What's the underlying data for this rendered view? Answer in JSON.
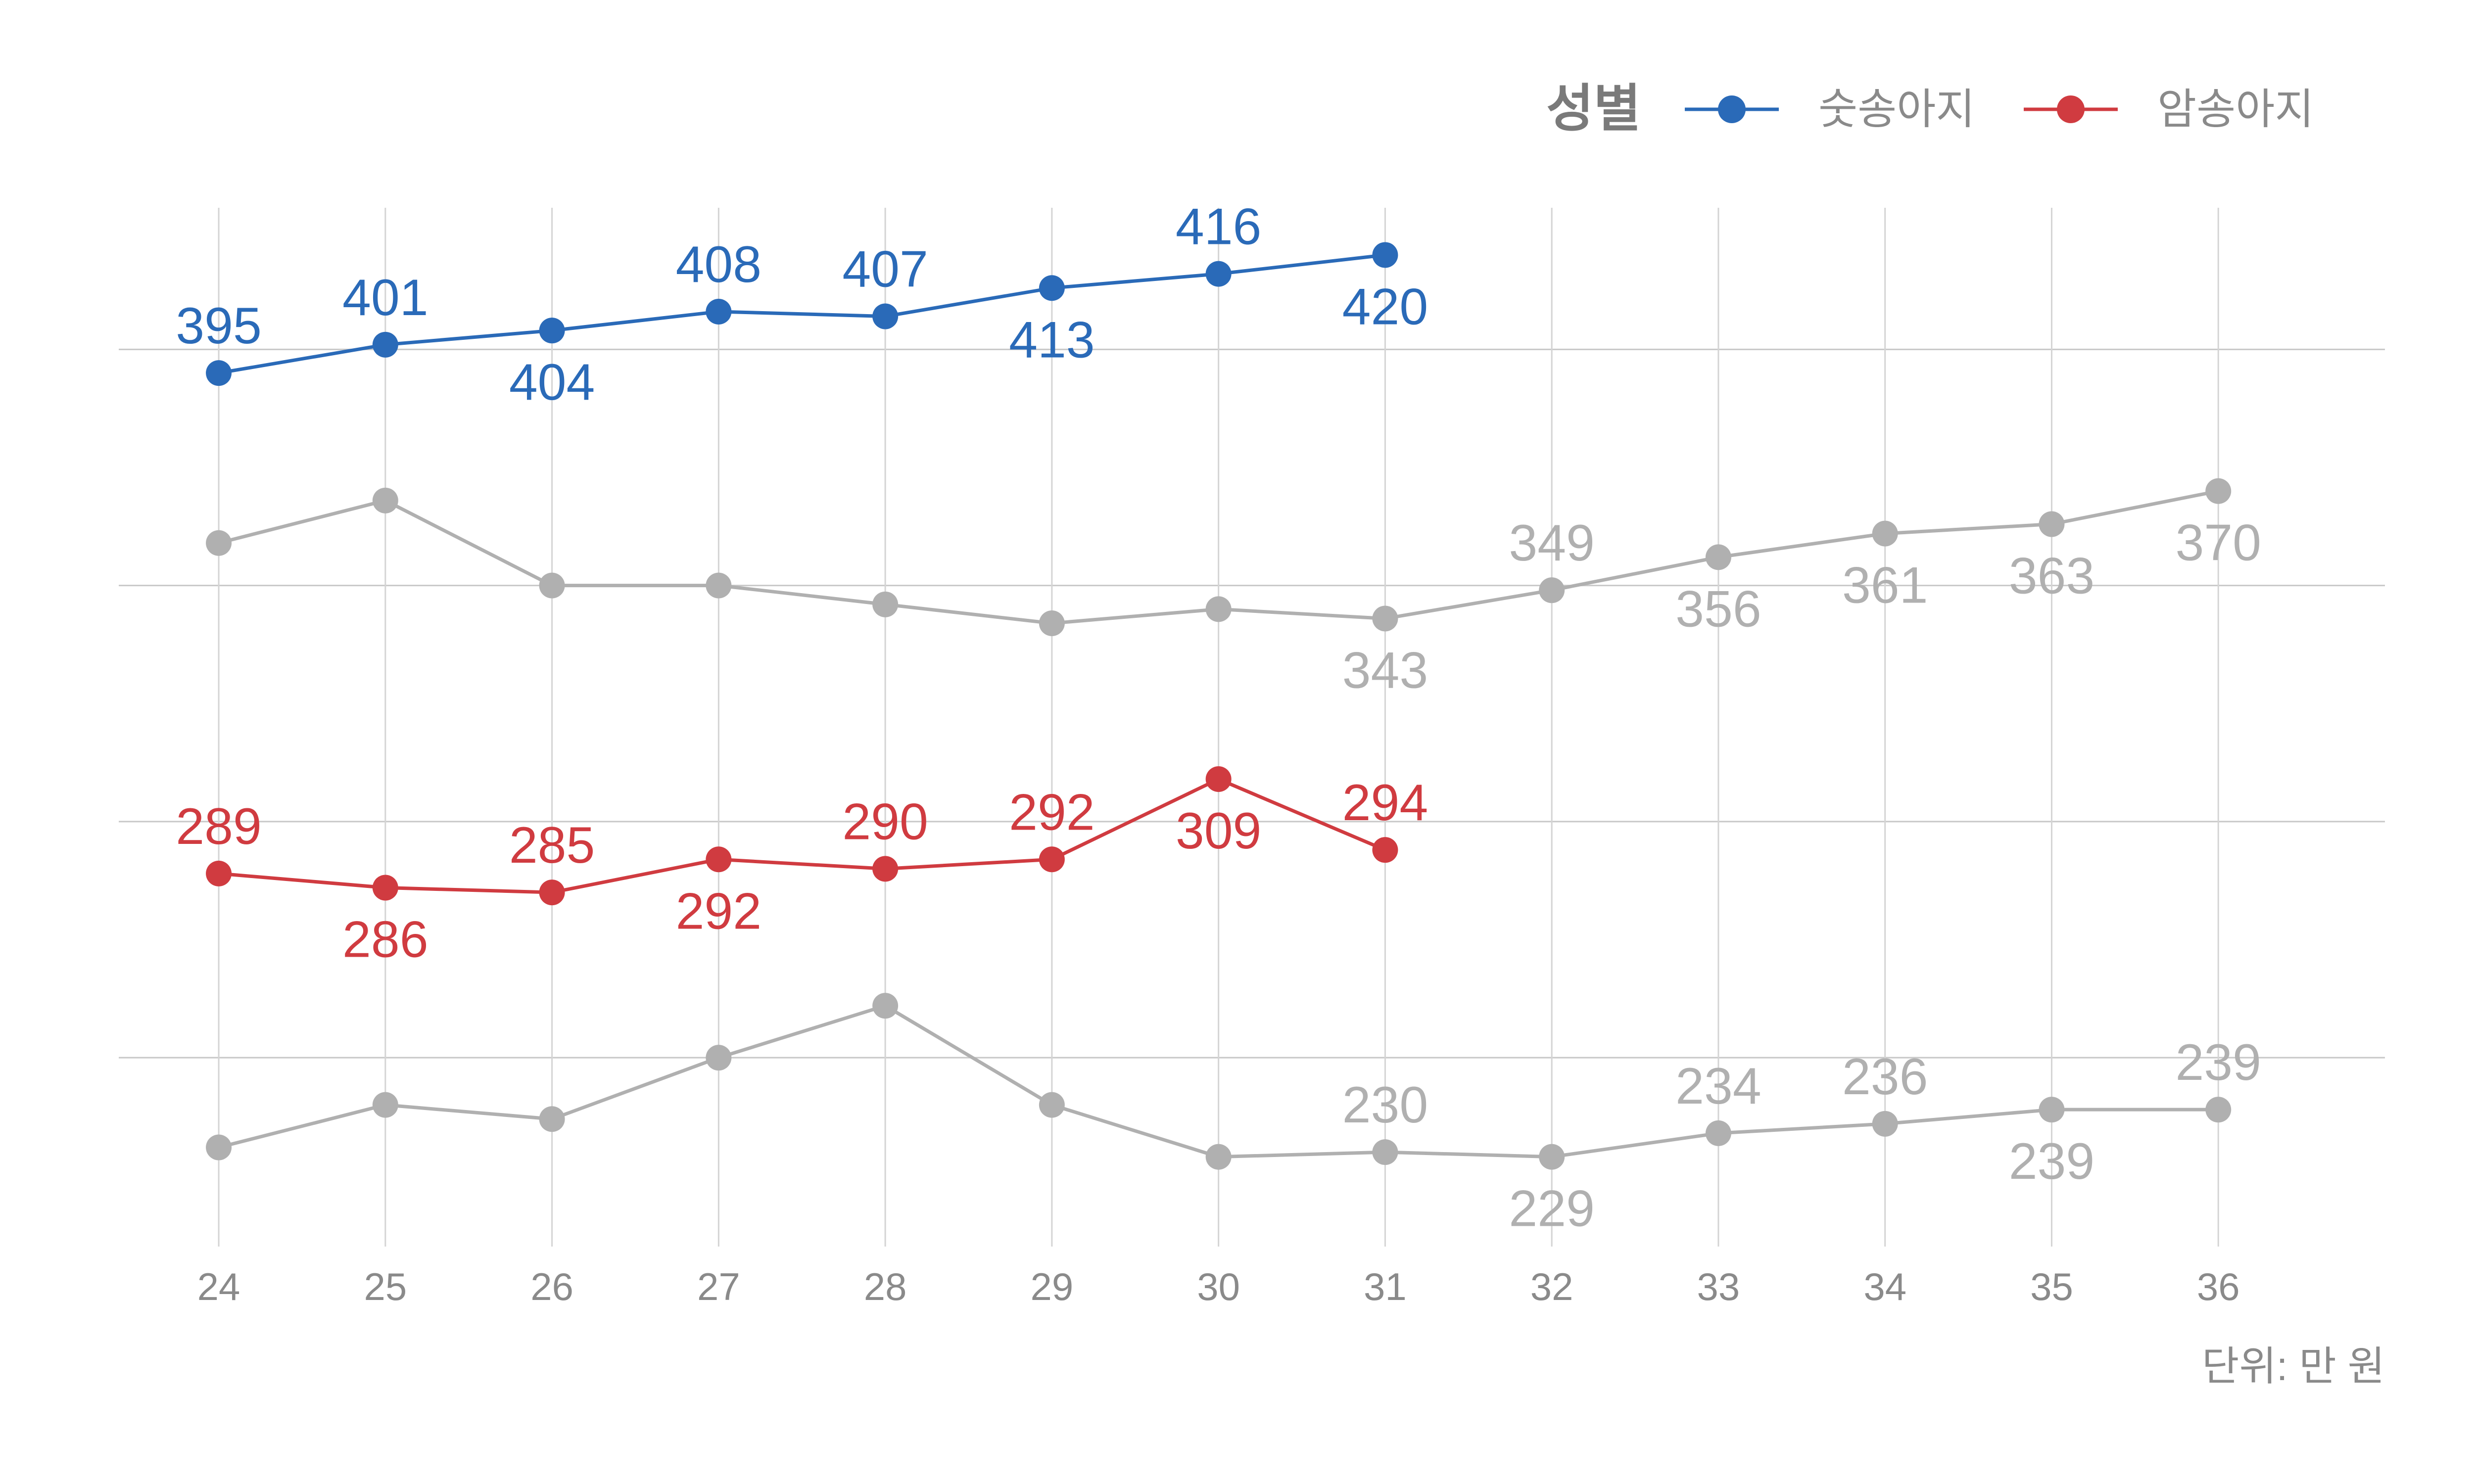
{
  "chart_data": {
    "type": "line",
    "x": [
      24,
      25,
      26,
      27,
      28,
      29,
      30,
      31,
      32,
      33,
      34,
      35,
      36
    ],
    "xlim": [
      23.4,
      37.0
    ],
    "ylim": [
      210,
      430
    ],
    "grid": true,
    "legend": {
      "title": "성별",
      "placement": "top-right",
      "entries": [
        {
          "label": "숫송아지",
          "color": "#2a6ab8"
        },
        {
          "label": "암송아지",
          "color": "#d03b40"
        }
      ]
    },
    "caption": "단위: 만 원",
    "series": [
      {
        "name": "숫송아지",
        "color": "#2a6ab8",
        "values": [
          395,
          401,
          404,
          408,
          407,
          413,
          416,
          420,
          null,
          null,
          null,
          null,
          null
        ],
        "labels": [
          395,
          401,
          404,
          408,
          407,
          413,
          416,
          420,
          null,
          null,
          null,
          null,
          null
        ],
        "label_pos": [
          "above",
          "above",
          "below",
          "above",
          "above",
          "below",
          "above",
          "below",
          null,
          null,
          null,
          null,
          null
        ]
      },
      {
        "name": "",
        "color": "#b0b0b0",
        "values": [
          359,
          368,
          350,
          350,
          346,
          342,
          345,
          343,
          349,
          356,
          361,
          363,
          370
        ],
        "labels": [
          null,
          null,
          null,
          null,
          null,
          null,
          null,
          343,
          349,
          356,
          361,
          363,
          370
        ],
        "label_pos": [
          null,
          null,
          null,
          null,
          null,
          null,
          null,
          "below",
          "above",
          "below",
          "below",
          "below",
          "below"
        ]
      },
      {
        "name": "암송아지",
        "color": "#d03b40",
        "values": [
          289,
          286,
          285,
          292,
          290,
          292,
          309,
          294,
          null,
          null,
          null,
          null,
          null
        ],
        "labels": [
          289,
          286,
          285,
          292,
          290,
          292,
          309,
          294,
          null,
          null,
          null,
          null,
          null
        ],
        "label_pos": [
          "above",
          "below",
          "above",
          "below",
          "above",
          "above",
          "below",
          "above",
          null,
          null,
          null,
          null,
          null
        ]
      },
      {
        "name": "",
        "color": "#b0b0b0",
        "values": [
          231,
          240,
          237,
          250,
          261,
          240,
          229,
          230,
          229,
          234,
          236,
          239,
          239
        ],
        "labels": [
          null,
          null,
          null,
          null,
          null,
          null,
          null,
          230,
          229,
          234,
          236,
          239,
          239
        ],
        "label_pos": [
          null,
          null,
          null,
          null,
          null,
          null,
          null,
          "above",
          "below",
          "above",
          "above",
          "below",
          "above"
        ]
      }
    ]
  }
}
